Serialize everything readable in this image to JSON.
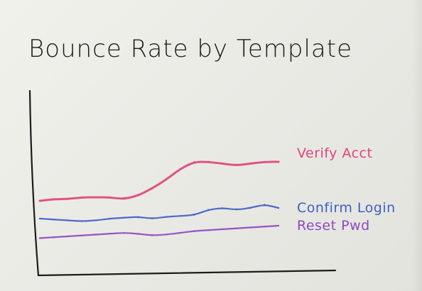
{
  "chart_data": {
    "type": "line",
    "title": "Bounce Rate by Template",
    "xlabel": "",
    "ylabel": "",
    "x": [
      1,
      2,
      3,
      4,
      5,
      6,
      7,
      8,
      9,
      10,
      11,
      12,
      13,
      14,
      15,
      16,
      17,
      18
    ],
    "ylim": [
      0,
      100
    ],
    "grid": false,
    "legend": "direct labels at line ends",
    "series": [
      {
        "name": "Verify Acct",
        "color": "#e0457b",
        "values": [
          38,
          39,
          39,
          40,
          40,
          40,
          39,
          41,
          45,
          50,
          56,
          60,
          60,
          59,
          58,
          59,
          60,
          60
        ]
      },
      {
        "name": "Confirm Login",
        "color": "#3f5fc4",
        "values": [
          28,
          27.5,
          27,
          26.5,
          27,
          28,
          28.5,
          29,
          28,
          29,
          29.5,
          30,
          33,
          34,
          33,
          34,
          36,
          34
        ]
      },
      {
        "name": "Reset Pwd",
        "color": "#8e49c0",
        "values": [
          17,
          17.5,
          18,
          18.5,
          19,
          19.5,
          20,
          19.5,
          18.5,
          19,
          20,
          21,
          21.5,
          22,
          22.5,
          23,
          23.5,
          24
        ]
      }
    ]
  }
}
